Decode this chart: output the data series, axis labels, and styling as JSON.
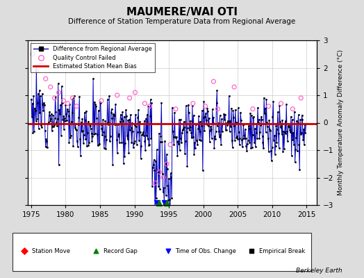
{
  "title": "MAUMERE/WAI OTI",
  "subtitle": "Difference of Station Temperature Data from Regional Average",
  "ylabel": "Monthly Temperature Anomaly Difference (°C)",
  "xmin": 1974.5,
  "xmax": 2016.5,
  "ymin": -3,
  "ymax": 3,
  "yticks": [
    -3,
    -2,
    -1,
    0,
    1,
    2,
    3
  ],
  "xticks": [
    1975,
    1980,
    1985,
    1990,
    1995,
    2000,
    2005,
    2010,
    2015
  ],
  "mean_bias": -0.05,
  "background_color": "#dddddd",
  "plot_bg_color": "#ffffff",
  "line_color": "#0000bb",
  "qc_color": "#ff66cc",
  "bias_color": "#cc0000",
  "seed": 12
}
